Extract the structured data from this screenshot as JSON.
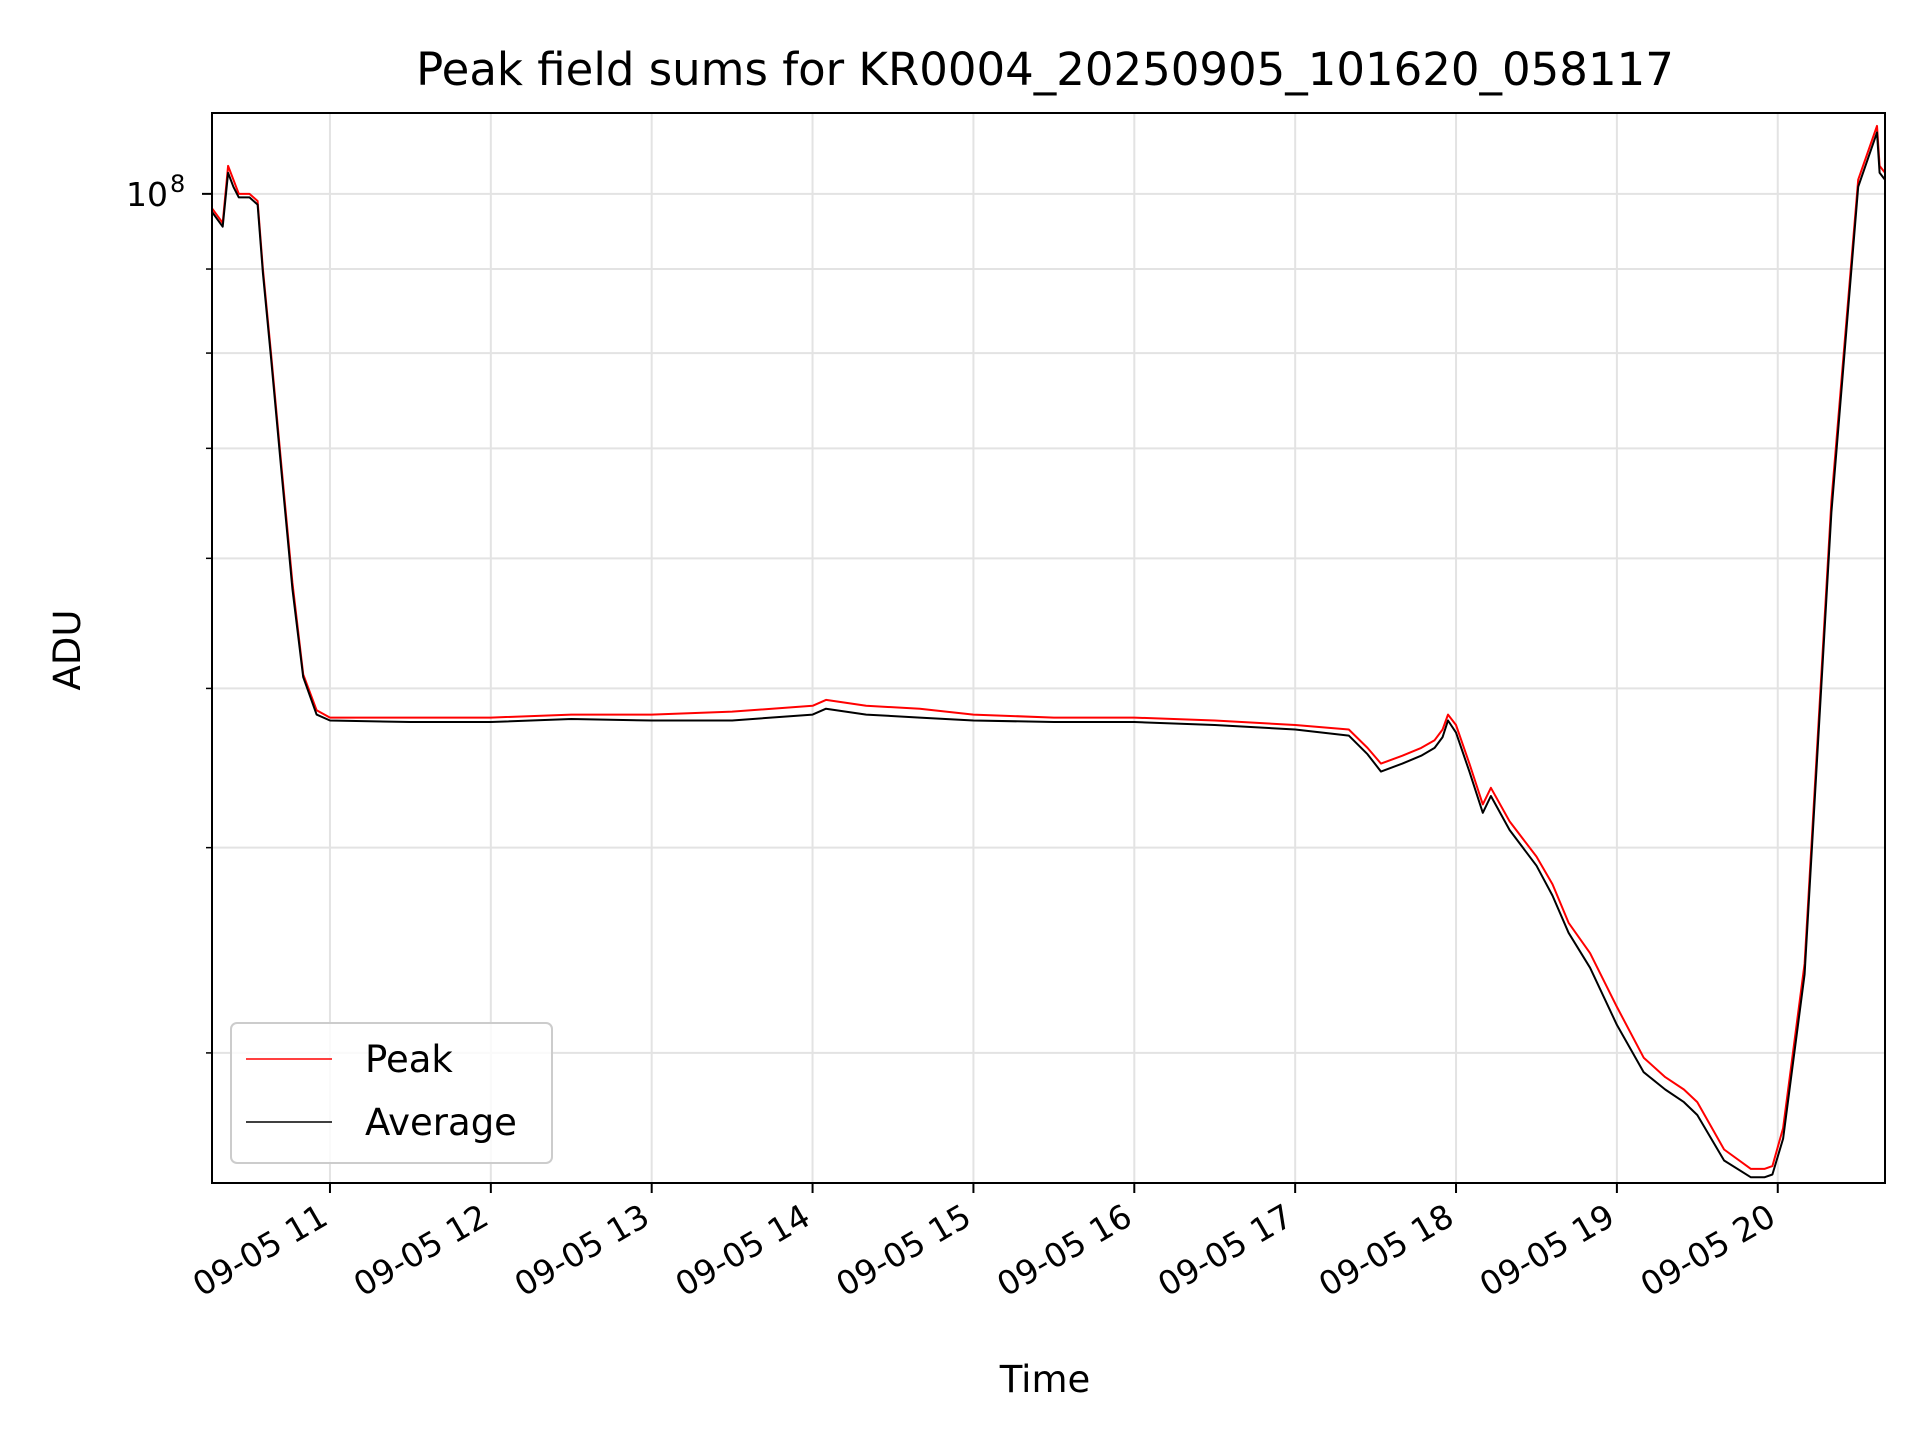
{
  "chart_data": {
    "type": "line",
    "title": "Peak field sums for KR0004_20250905_101620_058117",
    "xlabel": "Time",
    "ylabel": "ADU",
    "yscale": "log",
    "grid": true,
    "legend_position": "lower-left",
    "xlim": [
      "09-05 10:16",
      "09-05 20:40"
    ],
    "ylim": [
      25000000.0,
      112000000.0
    ],
    "x_tick_labels": [
      "09-05 11",
      "09-05 12",
      "09-05 13",
      "09-05 14",
      "09-05 15",
      "09-05 16",
      "09-05 17",
      "09-05 18",
      "09-05 19",
      "09-05 20"
    ],
    "y_tick_labels": [
      {
        "base": "10",
        "exp": "8"
      }
    ],
    "series": [
      {
        "name": "Peak",
        "color": "#ff0000",
        "x": [
          "09-05 10:16",
          "09-05 10:20",
          "09-05 10:22",
          "09-05 10:24",
          "09-05 10:26",
          "09-05 10:30",
          "09-05 10:33",
          "09-05 10:35",
          "09-05 10:38",
          "09-05 10:42",
          "09-05 10:46",
          "09-05 10:50",
          "09-05 10:55",
          "09-05 11:00",
          "09-05 11:30",
          "09-05 12:00",
          "09-05 12:30",
          "09-05 13:00",
          "09-05 13:30",
          "09-05 14:00",
          "09-05 14:05",
          "09-05 14:20",
          "09-05 14:40",
          "09-05 15:00",
          "09-05 15:30",
          "09-05 16:00",
          "09-05 16:30",
          "09-05 17:00",
          "09-05 17:20",
          "09-05 17:27",
          "09-05 17:32",
          "09-05 17:40",
          "09-05 17:47",
          "09-05 17:52",
          "09-05 17:55",
          "09-05 17:57",
          "09-05 18:00",
          "09-05 18:05",
          "09-05 18:10",
          "09-05 18:13",
          "09-05 18:20",
          "09-05 18:30",
          "09-05 18:36",
          "09-05 18:42",
          "09-05 18:50",
          "09-05 19:00",
          "09-05 19:10",
          "09-05 19:18",
          "09-05 19:25",
          "09-05 19:30",
          "09-05 19:40",
          "09-05 19:50",
          "09-05 19:55",
          "09-05 19:58",
          "09-05 20:02",
          "09-05 20:10",
          "09-05 20:20",
          "09-05 20:30",
          "09-05 20:37",
          "09-05 20:38",
          "09-05 20:40"
        ],
        "y": [
          98000000.0,
          96000000.0,
          104000000.0,
          102000000.0,
          100000000.0,
          100000000.0,
          99000000.0,
          90000000.0,
          80000000.0,
          68000000.0,
          58000000.0,
          51000000.0,
          48500000.0,
          48000000.0,
          48000000.0,
          48000000.0,
          48200000.0,
          48200000.0,
          48400000.0,
          48800000.0,
          49200000.0,
          48800000.0,
          48600000.0,
          48200000.0,
          48000000.0,
          48000000.0,
          47800000.0,
          47500000.0,
          47200000.0,
          46000000.0,
          45000000.0,
          45500000.0,
          46000000.0,
          46500000.0,
          47200000.0,
          48200000.0,
          47500000.0,
          45000000.0,
          42500000.0,
          43500000.0,
          41500000.0,
          39500000.0,
          38000000.0,
          36000000.0,
          34500000.0,
          32000000.0,
          29800000.0,
          29000000.0,
          28500000.0,
          28000000.0,
          26200000.0,
          25500000.0,
          25500000.0,
          25600000.0,
          27000000.0,
          34000000.0,
          65000000.0,
          102000000.0,
          110000000.0,
          104000000.0,
          103000000.0
        ]
      },
      {
        "name": "Average",
        "color": "#000000",
        "x": [
          "09-05 10:16",
          "09-05 10:20",
          "09-05 10:22",
          "09-05 10:24",
          "09-05 10:26",
          "09-05 10:30",
          "09-05 10:33",
          "09-05 10:35",
          "09-05 10:38",
          "09-05 10:42",
          "09-05 10:46",
          "09-05 10:50",
          "09-05 10:55",
          "09-05 11:00",
          "09-05 11:30",
          "09-05 12:00",
          "09-05 12:30",
          "09-05 13:00",
          "09-05 13:30",
          "09-05 14:00",
          "09-05 14:05",
          "09-05 14:20",
          "09-05 14:40",
          "09-05 15:00",
          "09-05 15:30",
          "09-05 16:00",
          "09-05 16:30",
          "09-05 17:00",
          "09-05 17:20",
          "09-05 17:27",
          "09-05 17:32",
          "09-05 17:40",
          "09-05 17:47",
          "09-05 17:52",
          "09-05 17:55",
          "09-05 17:57",
          "09-05 18:00",
          "09-05 18:05",
          "09-05 18:10",
          "09-05 18:13",
          "09-05 18:20",
          "09-05 18:30",
          "09-05 18:36",
          "09-05 18:42",
          "09-05 18:50",
          "09-05 19:00",
          "09-05 19:10",
          "09-05 19:18",
          "09-05 19:25",
          "09-05 19:30",
          "09-05 19:40",
          "09-05 19:50",
          "09-05 19:55",
          "09-05 19:58",
          "09-05 20:02",
          "09-05 20:10",
          "09-05 20:20",
          "09-05 20:30",
          "09-05 20:37",
          "09-05 20:38",
          "09-05 20:40"
        ],
        "y": [
          97500000.0,
          95500000.0,
          103000000.0,
          101000000.0,
          99500000.0,
          99500000.0,
          98500000.0,
          89500000.0,
          79500000.0,
          67500000.0,
          57500000.0,
          50800000.0,
          48200000.0,
          47800000.0,
          47700000.0,
          47700000.0,
          47900000.0,
          47800000.0,
          47800000.0,
          48200000.0,
          48600000.0,
          48200000.0,
          48000000.0,
          47800000.0,
          47700000.0,
          47700000.0,
          47500000.0,
          47200000.0,
          46800000.0,
          45600000.0,
          44500000.0,
          45000000.0,
          45500000.0,
          46000000.0,
          46700000.0,
          47800000.0,
          47000000.0,
          44500000.0,
          42000000.0,
          43000000.0,
          41000000.0,
          39000000.0,
          37400000.0,
          35500000.0,
          33800000.0,
          31200000.0,
          29200000.0,
          28500000.0,
          28000000.0,
          27500000.0,
          25800000.0,
          25200000.0,
          25200000.0,
          25300000.0,
          26600000.0,
          33500000.0,
          64000000.0,
          101000000.0,
          109000000.0,
          103000000.0,
          102000000.0
        ]
      }
    ]
  }
}
